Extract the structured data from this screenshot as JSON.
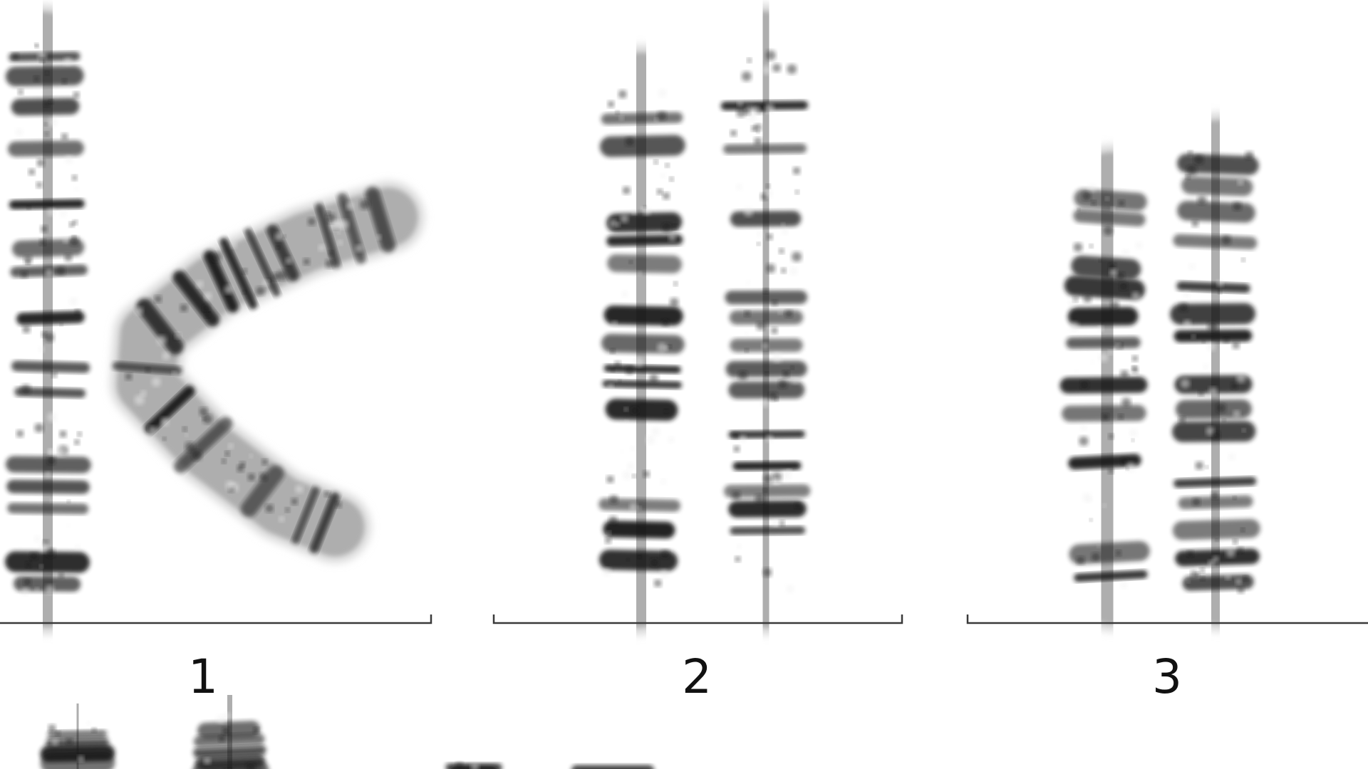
{
  "karyotype": {
    "pairs": [
      {
        "label": "1"
      },
      {
        "label": "2"
      },
      {
        "label": "3"
      }
    ]
  },
  "colors": {
    "background": "#ffffff",
    "chromatid_dark": "#141414",
    "chromatid_light": "#d6d6d6",
    "bracket": "#3a3a3a",
    "label": "#111111"
  }
}
